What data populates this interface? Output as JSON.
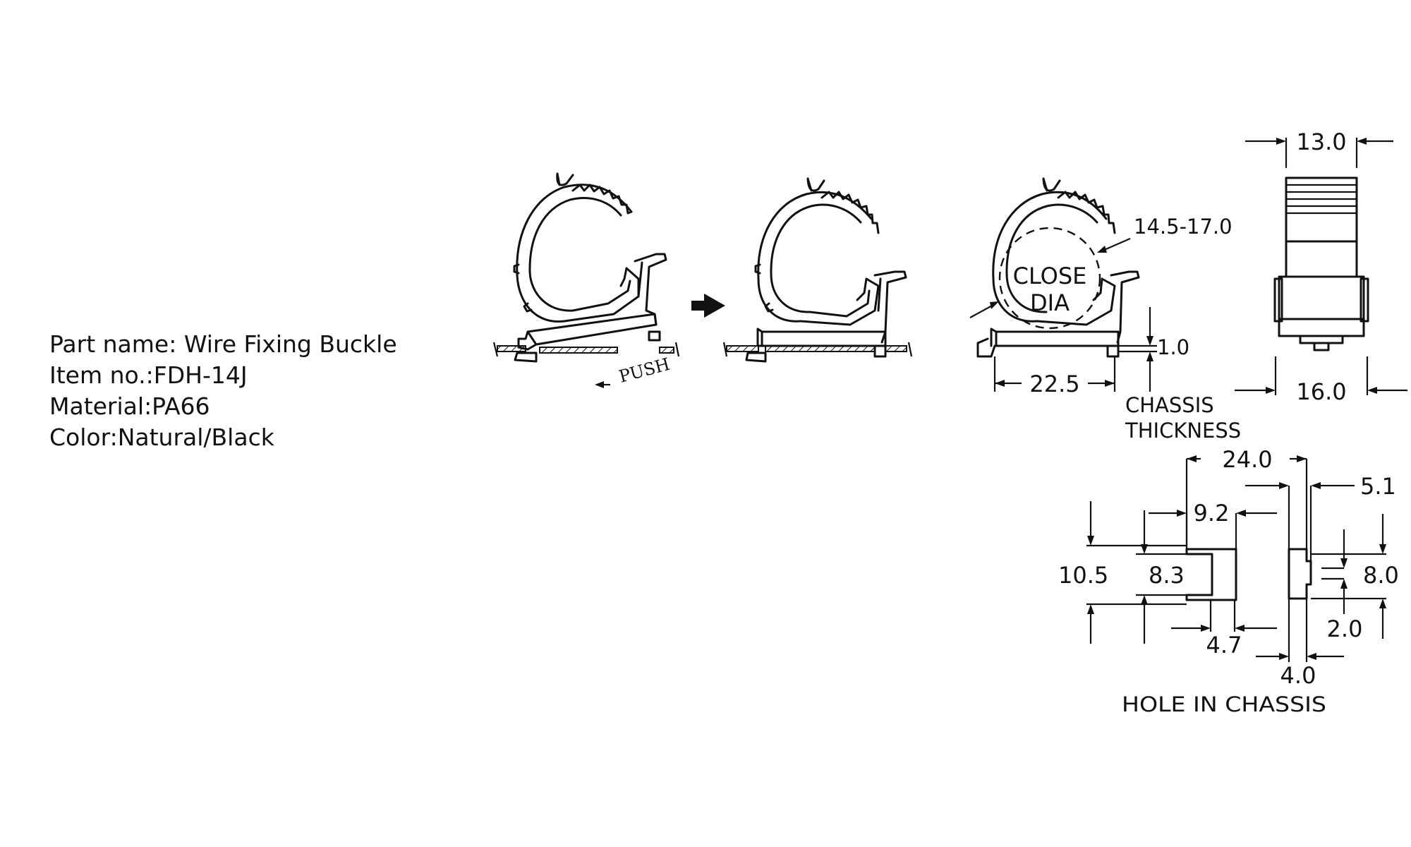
{
  "part_info": {
    "part_name": "Part name: Wire Fixing Buckle",
    "item_no": "Item no.:FDH-14J",
    "material": "Material:PA66",
    "color": "Color:Natural/Black"
  },
  "labels": {
    "push": "PUSH",
    "close": "CLOSE",
    "dia": "DIA",
    "chassis_thickness_1": "CHASSIS",
    "chassis_thickness_2": "THICKNESS",
    "hole_in_chassis": "HOLE IN CHASSIS"
  },
  "dimensions": {
    "close_dia": "14.5-17.0",
    "chassis": "1.0",
    "length": "22.5",
    "top_width": "13.0",
    "base_width": "16.0",
    "hole_span": "24.0",
    "d_5_1": "5.1",
    "d_9_2": "9.2",
    "d_10_5": "10.5",
    "d_8_3": "8.3",
    "d_8_0": "8.0",
    "d_4_7": "4.7",
    "d_2_0": "2.0",
    "d_4_0": "4.0"
  }
}
